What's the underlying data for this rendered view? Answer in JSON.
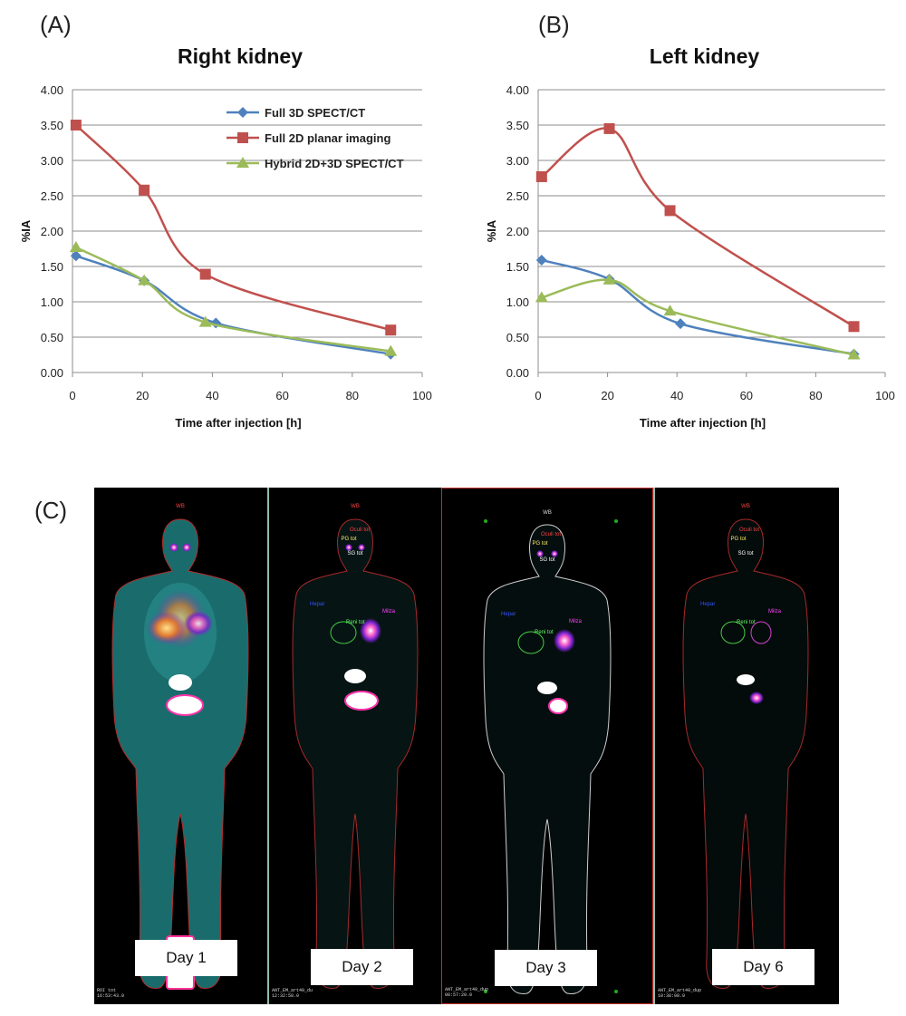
{
  "panels": {
    "a": "(A)",
    "b": "(B)",
    "c": "(C)"
  },
  "chart_data": [
    {
      "type": "line",
      "title": "Right kidney",
      "xlabel": "Time after injection [h]",
      "ylabel": "%IA",
      "xlim": [
        0,
        100
      ],
      "ylim": [
        0,
        4
      ],
      "xticks": [
        "0",
        "20",
        "40",
        "60",
        "80",
        "100"
      ],
      "yticks": [
        "0.00",
        "0.50",
        "1.00",
        "1.50",
        "2.00",
        "2.50",
        "3.00",
        "3.50",
        "4.00"
      ],
      "grid": true,
      "legend_position": "top-right",
      "series": [
        {
          "name": "Full 3D SPECT/CT",
          "color": "#4f81bd",
          "marker": "diamond",
          "x": [
            1,
            20.5,
            41,
            91
          ],
          "y": [
            1.65,
            1.3,
            0.7,
            0.26
          ]
        },
        {
          "name": "Full 2D planar imaging",
          "color": "#c0504d",
          "marker": "square",
          "x": [
            1,
            20.5,
            38,
            91
          ],
          "y": [
            3.5,
            2.58,
            1.39,
            0.6
          ]
        },
        {
          "name": "Hybrid 2D+3D SPECT/CT",
          "color": "#9bbb59",
          "marker": "triangle",
          "x": [
            1,
            20.5,
            38,
            91
          ],
          "y": [
            1.77,
            1.3,
            0.71,
            0.3
          ]
        }
      ]
    },
    {
      "type": "line",
      "title": "Left kidney",
      "xlabel": "Time after injection [h]",
      "ylabel": "%IA",
      "xlim": [
        0,
        100
      ],
      "ylim": [
        0,
        4
      ],
      "xticks": [
        "0",
        "20",
        "40",
        "60",
        "80",
        "100"
      ],
      "yticks": [
        "0.00",
        "0.50",
        "1.00",
        "1.50",
        "2.00",
        "2.50",
        "3.00",
        "3.50",
        "4.00"
      ],
      "grid": true,
      "legend_position": "none",
      "series": [
        {
          "name": "Full 3D SPECT/CT",
          "color": "#4f81bd",
          "marker": "diamond",
          "x": [
            1,
            20.5,
            41,
            91
          ],
          "y": [
            1.59,
            1.32,
            0.69,
            0.26
          ]
        },
        {
          "name": "Full 2D planar imaging",
          "color": "#c0504d",
          "marker": "square",
          "x": [
            1,
            20.5,
            38,
            91
          ],
          "y": [
            2.77,
            3.45,
            2.29,
            0.65
          ]
        },
        {
          "name": "Hybrid 2D+3D SPECT/CT",
          "color": "#9bbb59",
          "marker": "triangle",
          "x": [
            1,
            20.5,
            38,
            91
          ],
          "y": [
            1.06,
            1.31,
            0.87,
            0.25
          ]
        }
      ]
    }
  ],
  "scans": {
    "days": [
      "Day 1",
      "Day 2",
      "Day 3",
      "Day 6"
    ],
    "stamps": [
      "ROI tot\n16:53:43.0",
      "ANT_EM_art40_du\n12:32:58.0",
      "ANT_EM_art40_dup\n08:57:20.0",
      "ANT_EM_art40_dup\n10:38:08.0"
    ],
    "roi_labels": {
      "wb": "WB",
      "oculi": "Oculi tot",
      "pg": "PG tot",
      "sg": "SG tot",
      "hepar": "Hepar",
      "reni": "Reni tot",
      "milza": "Milza"
    }
  }
}
